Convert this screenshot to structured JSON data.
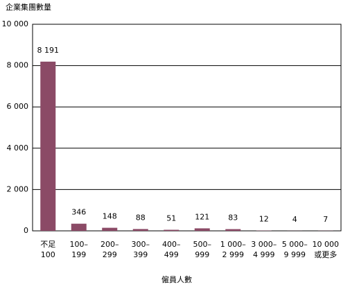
{
  "chart_data": {
    "type": "bar",
    "y_axis_label": "企業集團數量",
    "x_axis_label": "僱員人數",
    "categories": [
      "不足\n100",
      "100–\n199",
      "200–\n299",
      "300–\n399",
      "400–\n499",
      "500–\n999",
      "1 000–\n2 999",
      "3 000–\n4 999",
      "5 000–\n9 999",
      "10 000\n或更多"
    ],
    "values": [
      8191,
      346,
      148,
      88,
      51,
      121,
      83,
      12,
      4,
      7
    ],
    "value_labels": [
      "8 191",
      "346",
      "148",
      "88",
      "51",
      "121",
      "83",
      "12",
      "4",
      "7"
    ],
    "color": "#8b4a66",
    "ylim": [
      0,
      10000
    ],
    "yticks": [
      0,
      {
        "value": 2000,
        "label": "2 000"
      },
      {
        "value": 4000,
        "label": "4 000"
      },
      {
        "value": 6000,
        "label": "6 000"
      },
      {
        "value": 8000,
        "label": "8 000"
      },
      {
        "value": 10000,
        "label": "10 000"
      }
    ],
    "grid": true
  }
}
